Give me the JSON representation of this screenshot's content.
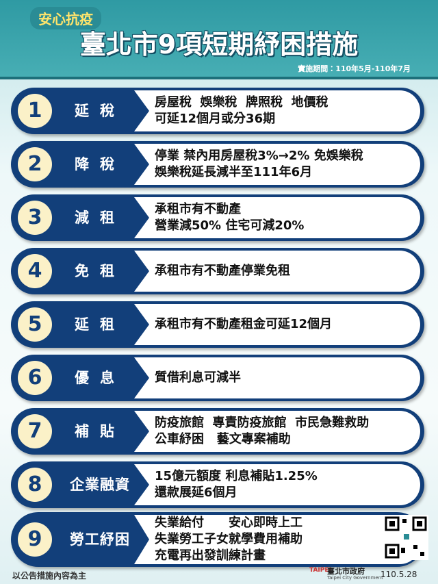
{
  "header": {
    "subtitle": "安心抗疫",
    "title": "臺北市9項短期紓困措施",
    "period": "實施期間：110年5月-110年7月"
  },
  "items": [
    {
      "number": "1",
      "label": "延稅",
      "lines": [
        "房屋稅  娛樂稅  牌照稅  地價稅",
        "可延12個月或分36期"
      ]
    },
    {
      "number": "2",
      "label": "降稅",
      "lines": [
        "停業 禁內用房屋稅3%→2% 免娛樂稅",
        "娛樂稅延長減半至111年6月"
      ]
    },
    {
      "number": "3",
      "label": "減租",
      "lines": [
        "承租市有不動產",
        "營業減50% 住宅可減20%"
      ]
    },
    {
      "number": "4",
      "label": "免租",
      "lines": [
        "承租市有不動產停業免租"
      ]
    },
    {
      "number": "5",
      "label": "延租",
      "lines": [
        "承租市有不動產租金可延12個月"
      ]
    },
    {
      "number": "6",
      "label": "優息",
      "lines": [
        "質借利息可減半"
      ]
    },
    {
      "number": "7",
      "label": "補貼",
      "lines": [
        "防疫旅館  專責防疫旅館  市民急難救助",
        "公車紓困   藝文專案補助"
      ]
    },
    {
      "number": "8",
      "label": "企業融資",
      "lines": [
        "15億元額度 利息補貼1.25%",
        "還款展延6個月"
      ]
    },
    {
      "number": "9",
      "label": "勞工紓困",
      "lines": [
        "失業給付　　安心即時上工",
        "失業勞工子女就學費用補助",
        "充電再出發訓練計畫"
      ]
    }
  ],
  "footer": {
    "note": "以公告措施內容為主",
    "logo_text": "TAIPEI",
    "org": "臺北市政府",
    "org_en": "Taipei City Government",
    "date": "110.5.28"
  }
}
